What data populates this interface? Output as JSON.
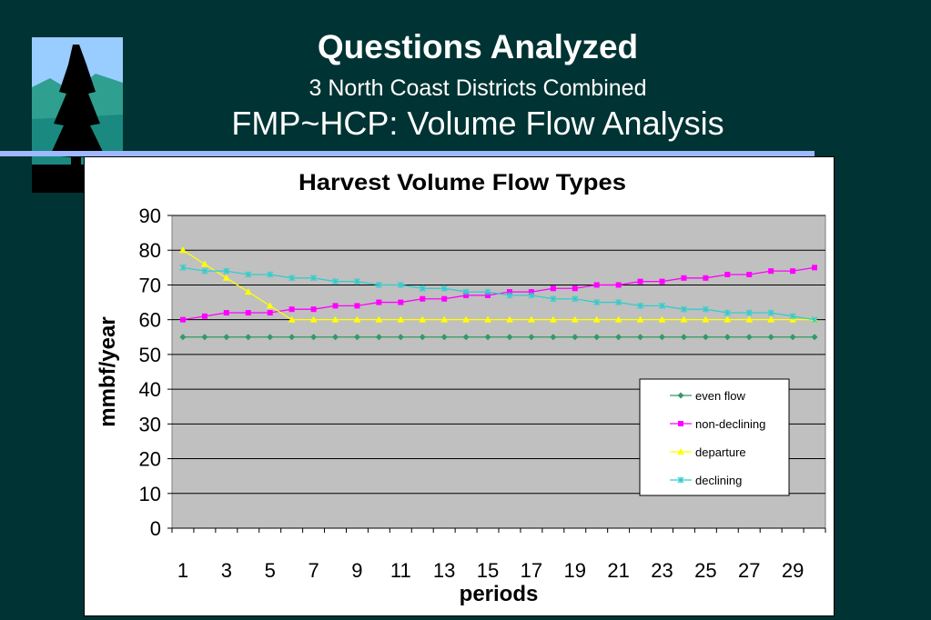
{
  "slide": {
    "title": "Questions Analyzed",
    "subtitle": "3 North Coast Districts Combined",
    "heading": "FMP~HCP: Volume Flow Analysis"
  },
  "colors": {
    "background": "#003333",
    "plot_area": "#c0c0c0",
    "even_flow": "#339966",
    "non_declining": "#ff00ff",
    "departure": "#ffff00",
    "declining": "#33cccc"
  },
  "chart_data": {
    "type": "line",
    "title": "Harvest Volume Flow Types",
    "xlabel": "periods",
    "ylabel": "mmbf/year",
    "ylim": [
      0,
      90
    ],
    "yticks": [
      0,
      10,
      20,
      30,
      40,
      50,
      60,
      70,
      80,
      90
    ],
    "x": [
      1,
      2,
      3,
      4,
      5,
      6,
      7,
      8,
      9,
      10,
      11,
      12,
      13,
      14,
      15,
      16,
      17,
      18,
      19,
      20,
      21,
      22,
      23,
      24,
      25,
      26,
      27,
      28,
      29,
      30
    ],
    "xtick_labels": [
      "1",
      "3",
      "5",
      "7",
      "9",
      "11",
      "13",
      "15",
      "17",
      "19",
      "21",
      "23",
      "25",
      "27",
      "29"
    ],
    "grid": true,
    "legend_position": "lower-right",
    "series": [
      {
        "name": "even flow",
        "values": [
          55,
          55,
          55,
          55,
          55,
          55,
          55,
          55,
          55,
          55,
          55,
          55,
          55,
          55,
          55,
          55,
          55,
          55,
          55,
          55,
          55,
          55,
          55,
          55,
          55,
          55,
          55,
          55,
          55,
          55
        ]
      },
      {
        "name": "non-declining",
        "values": [
          60,
          61,
          62,
          62,
          62,
          63,
          63,
          64,
          64,
          65,
          65,
          66,
          66,
          67,
          67,
          68,
          68,
          69,
          69,
          70,
          70,
          71,
          71,
          72,
          72,
          73,
          73,
          74,
          74,
          75
        ]
      },
      {
        "name": "departure",
        "values": [
          80,
          76,
          72,
          68,
          64,
          60,
          60,
          60,
          60,
          60,
          60,
          60,
          60,
          60,
          60,
          60,
          60,
          60,
          60,
          60,
          60,
          60,
          60,
          60,
          60,
          60,
          60,
          60,
          60,
          60
        ]
      },
      {
        "name": "declining",
        "values": [
          75,
          74,
          74,
          73,
          73,
          72,
          72,
          71,
          71,
          70,
          70,
          69,
          69,
          68,
          68,
          67,
          67,
          66,
          66,
          65,
          65,
          64,
          64,
          63,
          63,
          62,
          62,
          62,
          61,
          60
        ]
      }
    ]
  }
}
